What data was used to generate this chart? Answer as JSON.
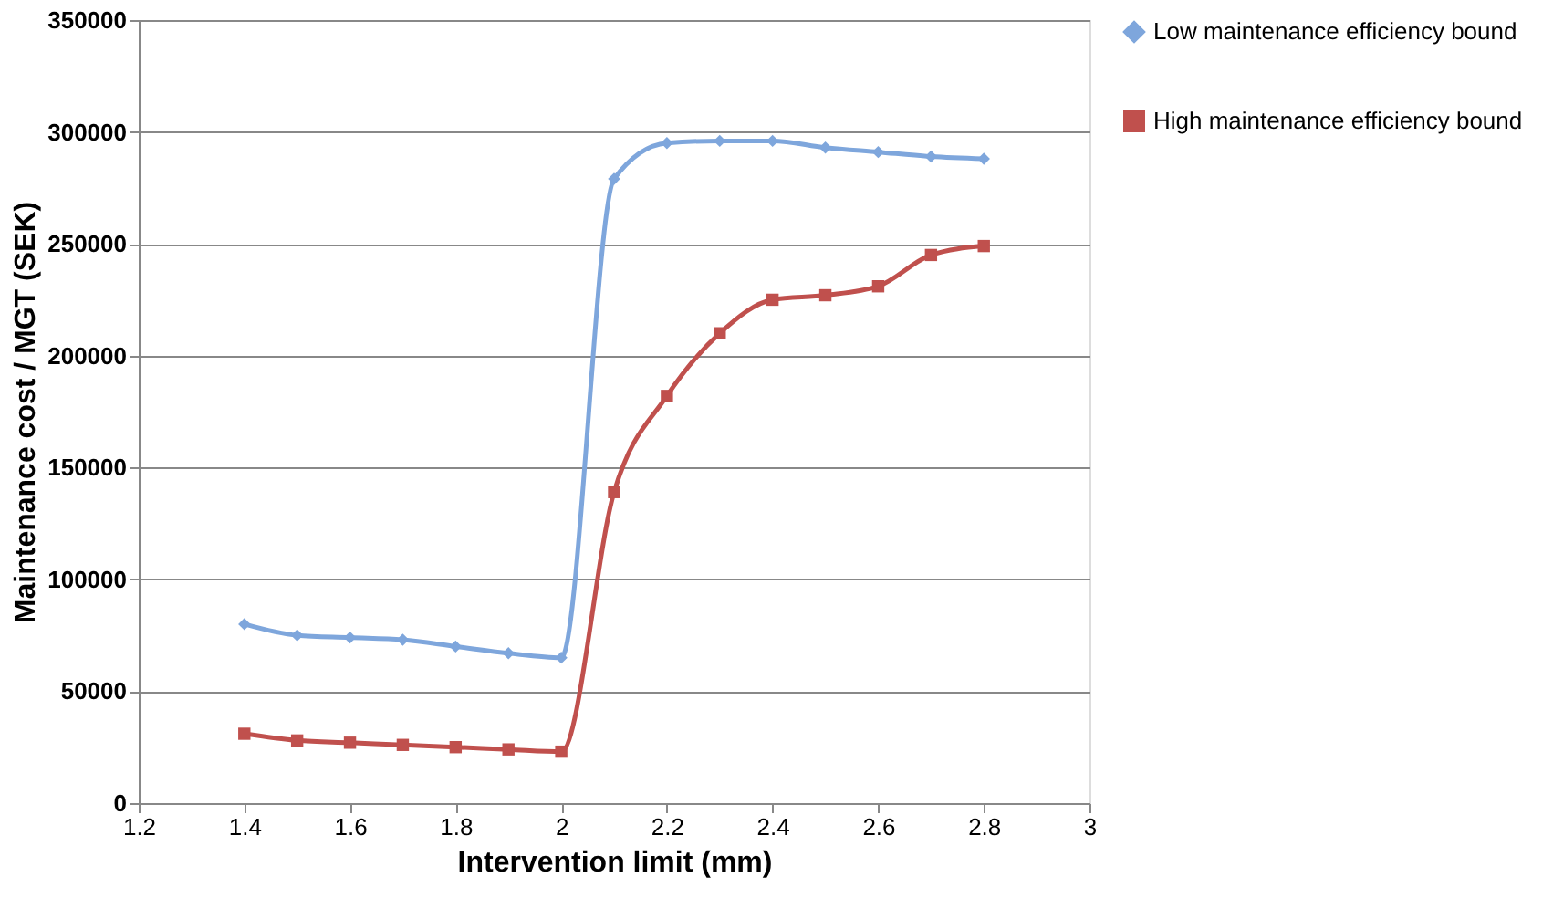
{
  "chart_data": {
    "type": "line",
    "xlabel": "Intervention limit (mm)",
    "ylabel": "Maintenance cost / MGT (SEK)",
    "x": [
      1.4,
      1.5,
      1.6,
      1.7,
      1.8,
      1.9,
      2.0,
      2.1,
      2.2,
      2.3,
      2.4,
      2.5,
      2.6,
      2.7,
      2.8
    ],
    "series": [
      {
        "name": "Low maintenance efficiency bound",
        "color": "#7ea6dc",
        "marker": "diamond",
        "values": [
          80000,
          75000,
          74000,
          73000,
          70000,
          67000,
          65000,
          279000,
          295000,
          296000,
          296000,
          293000,
          291000,
          289000,
          288000
        ]
      },
      {
        "name": "High maintenance efficiency bound",
        "color": "#c0504d",
        "marker": "square",
        "values": [
          31000,
          28000,
          27000,
          26000,
          25000,
          24000,
          23000,
          139000,
          182000,
          210000,
          225000,
          227000,
          231000,
          245000,
          249000
        ]
      }
    ],
    "xlim": [
      1.2,
      3
    ],
    "xticks": [
      1.2,
      1.4,
      1.6,
      1.8,
      2,
      2.2,
      2.4,
      2.6,
      2.8,
      3
    ],
    "ylim": [
      0,
      350000
    ],
    "yticks": [
      0,
      50000,
      100000,
      150000,
      200000,
      250000,
      300000,
      350000
    ],
    "grid": "y",
    "legend": "right",
    "line_style": "solid"
  }
}
